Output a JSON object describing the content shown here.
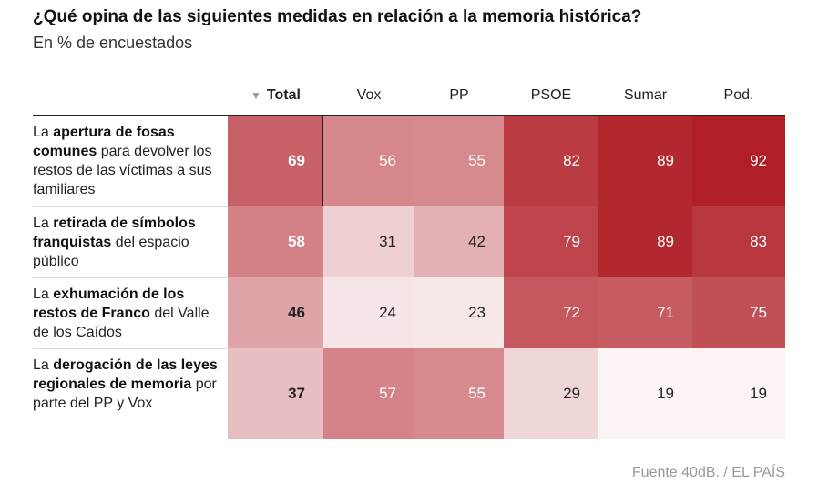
{
  "title": "¿Qué opina de las siguientes medidas en relación a la memoria histórica?",
  "subtitle": "En % de encuestados",
  "table": {
    "columns": [
      "Total",
      "Vox",
      "PP",
      "PSOE",
      "Sumar",
      "Pod."
    ],
    "rows": [
      {
        "label": [
          {
            "text": "La ",
            "bold": false
          },
          {
            "text": "apertura de fosas comunes",
            "bold": true
          },
          {
            "text": " para devolver los restos de las víctimas a sus familiares",
            "bold": false
          }
        ],
        "values": [
          69,
          56,
          55,
          82,
          89,
          92
        ]
      },
      {
        "label": [
          {
            "text": "La ",
            "bold": false
          },
          {
            "text": "retirada de símbolos franquistas",
            "bold": true
          },
          {
            "text": " del espacio público",
            "bold": false
          }
        ],
        "values": [
          58,
          31,
          42,
          79,
          89,
          83
        ]
      },
      {
        "label": [
          {
            "text": "La ",
            "bold": false
          },
          {
            "text": "exhumación de los restos de Franco",
            "bold": true
          },
          {
            "text": " del Valle de los Caídos",
            "bold": false
          }
        ],
        "values": [
          46,
          24,
          23,
          72,
          71,
          75
        ]
      },
      {
        "label": [
          {
            "text": "La ",
            "bold": false
          },
          {
            "text": "derogación de las leyes regionales de memoria",
            "bold": true
          },
          {
            "text": " por parte del PP y Vox",
            "bold": false
          }
        ],
        "values": [
          37,
          57,
          55,
          29,
          19,
          19
        ]
      }
    ]
  },
  "source": "Fuente 40dB. / EL PAÍS"
}
